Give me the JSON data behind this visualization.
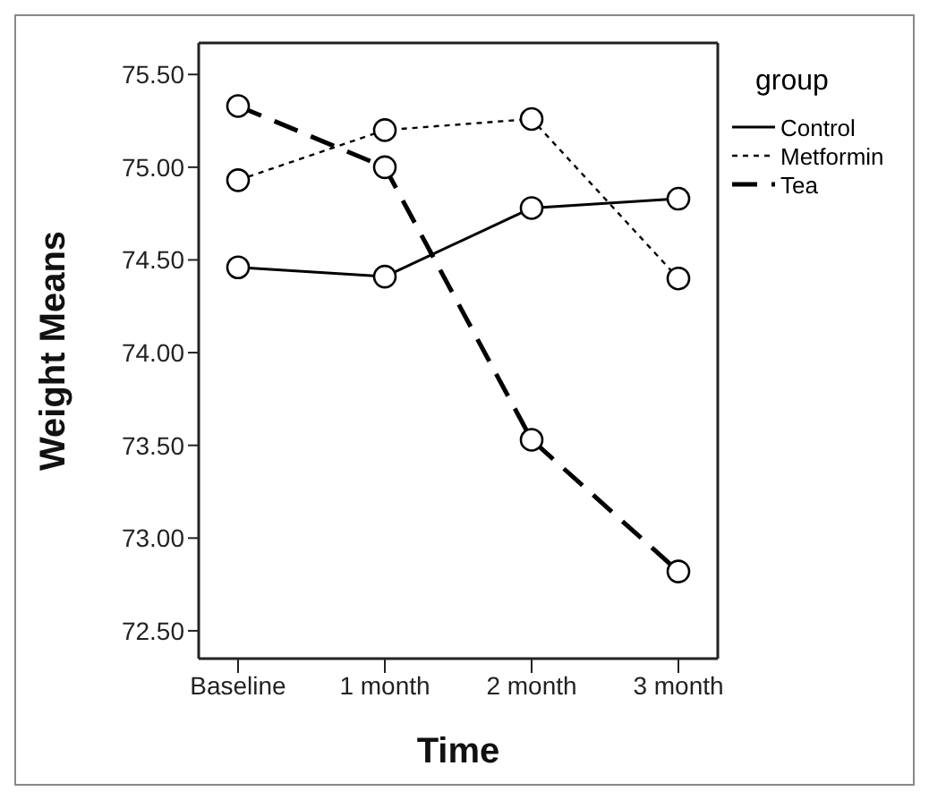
{
  "chart_data": {
    "type": "line",
    "xlabel": "Time",
    "ylabel": "Weight Means",
    "legend_title": "group",
    "categories": [
      "Baseline",
      "1 month",
      "2 month",
      "3 month"
    ],
    "series": [
      {
        "name": "Control",
        "color": "#000000",
        "line_style": "solid",
        "values": [
          74.46,
          74.41,
          74.78,
          74.83
        ]
      },
      {
        "name": "Metformin",
        "color": "#000000",
        "line_style": "dotted",
        "values": [
          74.93,
          75.2,
          75.26,
          74.4
        ]
      },
      {
        "name": "Tea",
        "color": "#000000",
        "line_style": "dashed",
        "values": [
          75.33,
          75.0,
          73.53,
          72.82
        ]
      }
    ],
    "ylim": [
      72.35,
      75.67
    ],
    "yticks": [
      {
        "value": 72.5,
        "label": "72.50"
      },
      {
        "value": 73,
        "label": "73.00"
      },
      {
        "value": 73.5,
        "label": "73.50"
      },
      {
        "value": 74,
        "label": "74.00"
      },
      {
        "value": 74.5,
        "label": "74.50"
      },
      {
        "value": 75,
        "label": "75.00"
      },
      {
        "value": 75.5,
        "label": "75.50"
      }
    ],
    "grid": false,
    "legend": "right",
    "marker": "circle"
  }
}
